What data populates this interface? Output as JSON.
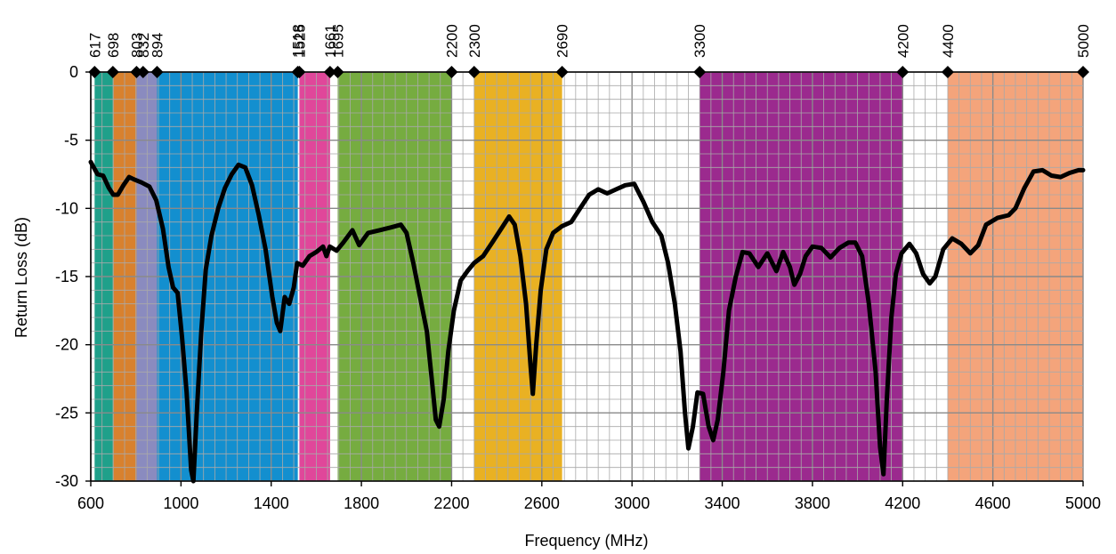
{
  "chart_data": {
    "type": "line",
    "title": "",
    "xlabel": "Frequency (MHz)",
    "ylabel": "Return Loss (dB)",
    "xlim": [
      600,
      5000
    ],
    "ylim": [
      -30,
      0
    ],
    "x_ticks": [
      600,
      1000,
      1400,
      1800,
      2200,
      2600,
      3000,
      3400,
      3800,
      4200,
      4600,
      5000
    ],
    "y_ticks": [
      0,
      -5,
      -10,
      -15,
      -20,
      -25,
      -30
    ],
    "grid": true,
    "minor_grid_x_step": 50,
    "minor_grid_y_step": 1,
    "band_markers": [
      617,
      698,
      803,
      832,
      894,
      1518,
      1525,
      1661,
      1695,
      2200,
      2300,
      2690,
      3300,
      4200,
      4400,
      5000
    ],
    "bands": [
      {
        "from": 617,
        "to": 698,
        "color": "#1fa08a"
      },
      {
        "from": 698,
        "to": 803,
        "color": "#d8812e"
      },
      {
        "from": 803,
        "to": 894,
        "color": "#8a8bbf"
      },
      {
        "from": 894,
        "to": 1518,
        "color": "#138fcf"
      },
      {
        "from": 1525,
        "to": 1661,
        "color": "#e0479a"
      },
      {
        "from": 1695,
        "to": 2200,
        "color": "#76ac40"
      },
      {
        "from": 2300,
        "to": 2690,
        "color": "#e9b123"
      },
      {
        "from": 3300,
        "to": 4200,
        "color": "#9b2a8e"
      },
      {
        "from": 4400,
        "to": 5000,
        "color": "#f4a47b"
      }
    ],
    "series": [
      {
        "color": "#000000",
        "points": [
          [
            600,
            -6.6
          ],
          [
            630,
            -7.5
          ],
          [
            655,
            -7.6
          ],
          [
            680,
            -8.5
          ],
          [
            700,
            -9.0
          ],
          [
            720,
            -9.0
          ],
          [
            745,
            -8.3
          ],
          [
            770,
            -7.7
          ],
          [
            795,
            -7.9
          ],
          [
            825,
            -8.1
          ],
          [
            860,
            -8.4
          ],
          [
            890,
            -9.4
          ],
          [
            920,
            -11.5
          ],
          [
            945,
            -14.3
          ],
          [
            965,
            -15.8
          ],
          [
            985,
            -16.2
          ],
          [
            1005,
            -19.5
          ],
          [
            1025,
            -23.5
          ],
          [
            1045,
            -29.2
          ],
          [
            1055,
            -30.0
          ],
          [
            1070,
            -25.0
          ],
          [
            1090,
            -19.0
          ],
          [
            1110,
            -14.5
          ],
          [
            1135,
            -12.0
          ],
          [
            1165,
            -10.0
          ],
          [
            1195,
            -8.5
          ],
          [
            1225,
            -7.5
          ],
          [
            1255,
            -6.8
          ],
          [
            1285,
            -7.0
          ],
          [
            1315,
            -8.3
          ],
          [
            1345,
            -10.5
          ],
          [
            1375,
            -13.0
          ],
          [
            1405,
            -16.5
          ],
          [
            1425,
            -18.4
          ],
          [
            1440,
            -19.0
          ],
          [
            1460,
            -16.5
          ],
          [
            1480,
            -17.0
          ],
          [
            1500,
            -15.8
          ],
          [
            1515,
            -14.0
          ],
          [
            1540,
            -14.2
          ],
          [
            1570,
            -13.5
          ],
          [
            1600,
            -13.2
          ],
          [
            1630,
            -12.8
          ],
          [
            1645,
            -13.5
          ],
          [
            1660,
            -12.8
          ],
          [
            1690,
            -13.1
          ],
          [
            1720,
            -12.5
          ],
          [
            1760,
            -11.6
          ],
          [
            1790,
            -12.7
          ],
          [
            1830,
            -11.8
          ],
          [
            1880,
            -11.6
          ],
          [
            1930,
            -11.4
          ],
          [
            1975,
            -11.2
          ],
          [
            2000,
            -11.8
          ],
          [
            2030,
            -14.0
          ],
          [
            2060,
            -16.5
          ],
          [
            2090,
            -19.0
          ],
          [
            2115,
            -23.0
          ],
          [
            2130,
            -25.5
          ],
          [
            2145,
            -26.0
          ],
          [
            2165,
            -24.0
          ],
          [
            2185,
            -20.5
          ],
          [
            2210,
            -17.5
          ],
          [
            2240,
            -15.3
          ],
          [
            2270,
            -14.6
          ],
          [
            2300,
            -14.0
          ],
          [
            2340,
            -13.5
          ],
          [
            2380,
            -12.5
          ],
          [
            2420,
            -11.5
          ],
          [
            2455,
            -10.6
          ],
          [
            2480,
            -11.2
          ],
          [
            2505,
            -13.5
          ],
          [
            2530,
            -17.0
          ],
          [
            2550,
            -21.5
          ],
          [
            2560,
            -23.6
          ],
          [
            2575,
            -20.0
          ],
          [
            2595,
            -16.0
          ],
          [
            2620,
            -13.0
          ],
          [
            2650,
            -11.8
          ],
          [
            2690,
            -11.3
          ],
          [
            2730,
            -11.0
          ],
          [
            2770,
            -10.0
          ],
          [
            2810,
            -9.0
          ],
          [
            2850,
            -8.6
          ],
          [
            2890,
            -8.9
          ],
          [
            2930,
            -8.6
          ],
          [
            2970,
            -8.3
          ],
          [
            3010,
            -8.2
          ],
          [
            3050,
            -9.5
          ],
          [
            3090,
            -11.0
          ],
          [
            3130,
            -12.0
          ],
          [
            3160,
            -14.0
          ],
          [
            3190,
            -17.0
          ],
          [
            3215,
            -20.5
          ],
          [
            3235,
            -25.0
          ],
          [
            3250,
            -27.6
          ],
          [
            3270,
            -26.0
          ],
          [
            3290,
            -23.5
          ],
          [
            3315,
            -23.6
          ],
          [
            3340,
            -26.0
          ],
          [
            3360,
            -27.0
          ],
          [
            3380,
            -25.5
          ],
          [
            3405,
            -22.0
          ],
          [
            3430,
            -17.5
          ],
          [
            3460,
            -15.0
          ],
          [
            3490,
            -13.2
          ],
          [
            3520,
            -13.3
          ],
          [
            3560,
            -14.3
          ],
          [
            3600,
            -13.3
          ],
          [
            3640,
            -14.6
          ],
          [
            3670,
            -13.2
          ],
          [
            3700,
            -14.3
          ],
          [
            3720,
            -15.6
          ],
          [
            3745,
            -14.8
          ],
          [
            3770,
            -13.5
          ],
          [
            3800,
            -12.8
          ],
          [
            3840,
            -12.9
          ],
          [
            3880,
            -13.6
          ],
          [
            3920,
            -12.9
          ],
          [
            3960,
            -12.5
          ],
          [
            3990,
            -12.5
          ],
          [
            4020,
            -13.5
          ],
          [
            4050,
            -17.0
          ],
          [
            4080,
            -22.0
          ],
          [
            4100,
            -27.5
          ],
          [
            4115,
            -29.5
          ],
          [
            4130,
            -24.0
          ],
          [
            4150,
            -18.0
          ],
          [
            4170,
            -14.8
          ],
          [
            4195,
            -13.3
          ],
          [
            4230,
            -12.6
          ],
          [
            4260,
            -13.3
          ],
          [
            4290,
            -14.8
          ],
          [
            4320,
            -15.5
          ],
          [
            4345,
            -15.0
          ],
          [
            4380,
            -13.0
          ],
          [
            4420,
            -12.2
          ],
          [
            4460,
            -12.6
          ],
          [
            4500,
            -13.3
          ],
          [
            4535,
            -12.7
          ],
          [
            4570,
            -11.2
          ],
          [
            4620,
            -10.7
          ],
          [
            4670,
            -10.5
          ],
          [
            4700,
            -10.0
          ],
          [
            4740,
            -8.5
          ],
          [
            4780,
            -7.3
          ],
          [
            4820,
            -7.2
          ],
          [
            4860,
            -7.6
          ],
          [
            4900,
            -7.7
          ],
          [
            4940,
            -7.4
          ],
          [
            4980,
            -7.2
          ],
          [
            5000,
            -7.2
          ]
        ]
      }
    ]
  }
}
